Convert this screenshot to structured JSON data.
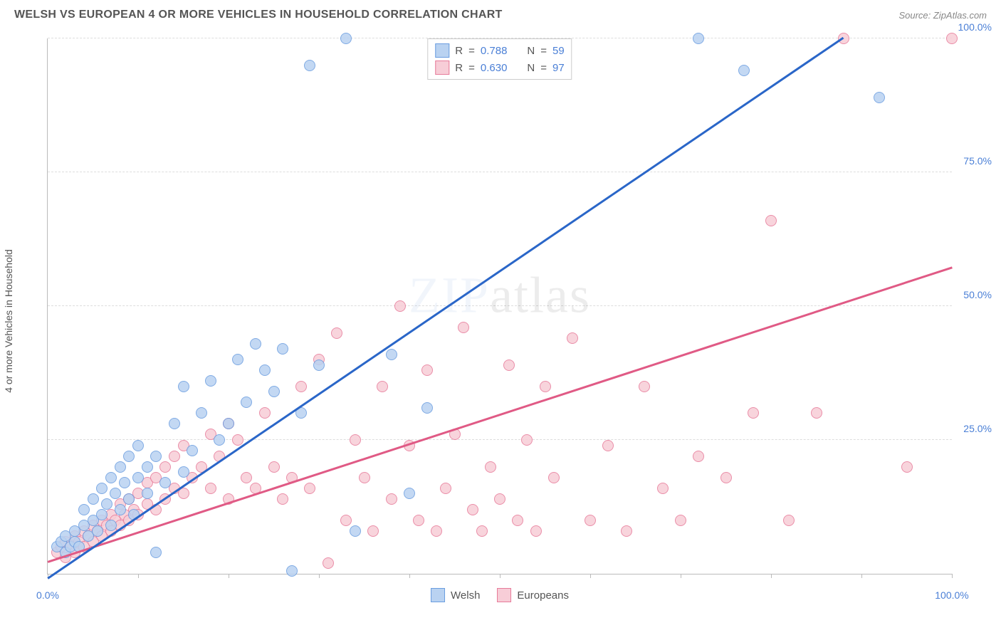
{
  "header": {
    "title": "WELSH VS EUROPEAN 4 OR MORE VEHICLES IN HOUSEHOLD CORRELATION CHART",
    "source": "Source: ZipAtlas.com"
  },
  "chart": {
    "type": "scatter",
    "y_axis_title": "4 or more Vehicles in Household",
    "xlim": [
      0,
      100
    ],
    "ylim": [
      0,
      100
    ],
    "x_ticks": [
      0,
      10,
      20,
      30,
      40,
      50,
      60,
      70,
      80,
      90,
      100
    ],
    "x_tick_labels": {
      "0": "0.0%",
      "100": "100.0%"
    },
    "y_ticks": [
      25,
      50,
      75,
      100
    ],
    "y_tick_labels": {
      "25": "25.0%",
      "50": "50.0%",
      "75": "75.0%",
      "100": "100.0%"
    },
    "grid_color": "#dddddd",
    "axis_color": "#bbbbbb",
    "tick_label_color": "#4a7fd6",
    "background_color": "#ffffff",
    "watermark": {
      "text_a": "ZIP",
      "text_b": "atlas"
    },
    "series": {
      "welsh": {
        "label": "Welsh",
        "fill": "#b9d2f1",
        "stroke": "#6a9de0",
        "line_color": "#2a66c8",
        "r": "0.788",
        "n": "59",
        "trend": {
          "x1": 0,
          "y1": -1,
          "x2": 88,
          "y2": 100
        },
        "points": [
          [
            1,
            5
          ],
          [
            1.5,
            6
          ],
          [
            2,
            4
          ],
          [
            2,
            7
          ],
          [
            2.5,
            5
          ],
          [
            3,
            6
          ],
          [
            3,
            8
          ],
          [
            3.5,
            5
          ],
          [
            4,
            9
          ],
          [
            4,
            12
          ],
          [
            4.5,
            7
          ],
          [
            5,
            10
          ],
          [
            5,
            14
          ],
          [
            5.5,
            8
          ],
          [
            6,
            11
          ],
          [
            6,
            16
          ],
          [
            6.5,
            13
          ],
          [
            7,
            9
          ],
          [
            7,
            18
          ],
          [
            7.5,
            15
          ],
          [
            8,
            12
          ],
          [
            8,
            20
          ],
          [
            8.5,
            17
          ],
          [
            9,
            14
          ],
          [
            9,
            22
          ],
          [
            9.5,
            11
          ],
          [
            10,
            18
          ],
          [
            10,
            24
          ],
          [
            11,
            15
          ],
          [
            11,
            20
          ],
          [
            12,
            22
          ],
          [
            12,
            4
          ],
          [
            13,
            17
          ],
          [
            14,
            28
          ],
          [
            15,
            19
          ],
          [
            15,
            35
          ],
          [
            16,
            23
          ],
          [
            17,
            30
          ],
          [
            18,
            36
          ],
          [
            19,
            25
          ],
          [
            20,
            28
          ],
          [
            21,
            40
          ],
          [
            22,
            32
          ],
          [
            23,
            43
          ],
          [
            24,
            38
          ],
          [
            25,
            34
          ],
          [
            26,
            42
          ],
          [
            27,
            0.5
          ],
          [
            28,
            30
          ],
          [
            29,
            95
          ],
          [
            30,
            39
          ],
          [
            33,
            100
          ],
          [
            34,
            8
          ],
          [
            38,
            41
          ],
          [
            40,
            15
          ],
          [
            42,
            31
          ],
          [
            72,
            100
          ],
          [
            77,
            94
          ],
          [
            92,
            89
          ]
        ]
      },
      "europeans": {
        "label": "Europeans",
        "fill": "#f7cdd7",
        "stroke": "#e77b9a",
        "line_color": "#e05a85",
        "r": "0.630",
        "n": "97",
        "trend": {
          "x1": 0,
          "y1": 2,
          "x2": 100,
          "y2": 57
        },
        "points": [
          [
            1,
            4
          ],
          [
            1.5,
            5
          ],
          [
            2,
            3
          ],
          [
            2,
            6
          ],
          [
            2.5,
            5
          ],
          [
            3,
            4
          ],
          [
            3,
            7
          ],
          [
            3.5,
            6
          ],
          [
            4,
            5
          ],
          [
            4,
            8
          ],
          [
            4.5,
            7
          ],
          [
            5,
            6
          ],
          [
            5,
            9
          ],
          [
            5.5,
            8
          ],
          [
            6,
            7
          ],
          [
            6,
            10
          ],
          [
            6.5,
            9
          ],
          [
            7,
            8
          ],
          [
            7,
            11
          ],
          [
            7.5,
            10
          ],
          [
            8,
            9
          ],
          [
            8,
            13
          ],
          [
            8.5,
            11
          ],
          [
            9,
            10
          ],
          [
            9,
            14
          ],
          [
            9.5,
            12
          ],
          [
            10,
            11
          ],
          [
            10,
            15
          ],
          [
            11,
            13
          ],
          [
            11,
            17
          ],
          [
            12,
            12
          ],
          [
            12,
            18
          ],
          [
            13,
            14
          ],
          [
            13,
            20
          ],
          [
            14,
            16
          ],
          [
            14,
            22
          ],
          [
            15,
            15
          ],
          [
            15,
            24
          ],
          [
            16,
            18
          ],
          [
            17,
            20
          ],
          [
            18,
            16
          ],
          [
            18,
            26
          ],
          [
            19,
            22
          ],
          [
            20,
            14
          ],
          [
            20,
            28
          ],
          [
            21,
            25
          ],
          [
            22,
            18
          ],
          [
            23,
            16
          ],
          [
            24,
            30
          ],
          [
            25,
            20
          ],
          [
            26,
            14
          ],
          [
            27,
            18
          ],
          [
            28,
            35
          ],
          [
            29,
            16
          ],
          [
            30,
            40
          ],
          [
            31,
            2
          ],
          [
            32,
            45
          ],
          [
            33,
            10
          ],
          [
            34,
            25
          ],
          [
            35,
            18
          ],
          [
            36,
            8
          ],
          [
            37,
            35
          ],
          [
            38,
            14
          ],
          [
            39,
            50
          ],
          [
            40,
            24
          ],
          [
            41,
            10
          ],
          [
            42,
            38
          ],
          [
            43,
            8
          ],
          [
            44,
            16
          ],
          [
            45,
            26
          ],
          [
            46,
            46
          ],
          [
            47,
            12
          ],
          [
            48,
            8
          ],
          [
            49,
            20
          ],
          [
            50,
            14
          ],
          [
            51,
            39
          ],
          [
            52,
            10
          ],
          [
            53,
            25
          ],
          [
            54,
            8
          ],
          [
            55,
            35
          ],
          [
            56,
            18
          ],
          [
            58,
            44
          ],
          [
            60,
            10
          ],
          [
            62,
            24
          ],
          [
            64,
            8
          ],
          [
            66,
            35
          ],
          [
            68,
            16
          ],
          [
            70,
            10
          ],
          [
            72,
            22
          ],
          [
            75,
            18
          ],
          [
            78,
            30
          ],
          [
            80,
            66
          ],
          [
            82,
            10
          ],
          [
            85,
            30
          ],
          [
            88,
            100
          ],
          [
            95,
            20
          ],
          [
            100,
            100
          ]
        ]
      }
    },
    "legend_top": {
      "r_label": "R",
      "n_label": "N",
      "eq": "="
    },
    "legend_bottom": [
      {
        "key": "welsh"
      },
      {
        "key": "europeans"
      }
    ]
  }
}
